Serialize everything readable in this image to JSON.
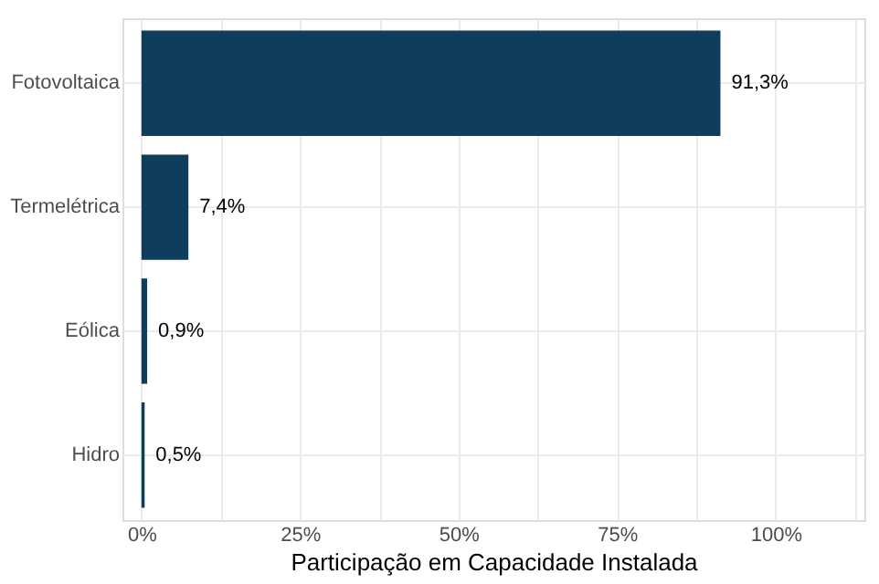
{
  "chart_data": {
    "type": "bar",
    "orientation": "horizontal",
    "xlabel": "Participação em Capacidade Instalada",
    "categories": [
      "Fotovoltaica",
      "Termelétrica",
      "Eólica",
      "Hidro"
    ],
    "values": [
      91.3,
      7.4,
      0.9,
      0.5
    ],
    "color": "#0f3d5c",
    "value_labels": [
      "91,3%",
      "7,4%",
      "0,9%",
      "0,5%"
    ],
    "xlim": [
      -3,
      114
    ],
    "xticks": [
      {
        "value": 0,
        "label": "0%"
      },
      {
        "value": 12.5,
        "label": null
      },
      {
        "value": 25,
        "label": "25%"
      },
      {
        "value": 37.5,
        "label": null
      },
      {
        "value": 50,
        "label": "50%"
      },
      {
        "value": 62.5,
        "label": null
      },
      {
        "value": 75,
        "label": "75%"
      },
      {
        "value": 87.5,
        "label": null
      },
      {
        "value": 100,
        "label": "100%"
      },
      {
        "value": 112.5,
        "label": null
      }
    ],
    "grid": true
  }
}
